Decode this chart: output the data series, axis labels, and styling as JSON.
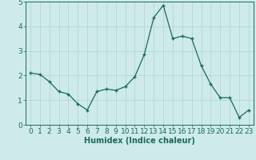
{
  "x": [
    0,
    1,
    2,
    3,
    4,
    5,
    6,
    7,
    8,
    9,
    10,
    11,
    12,
    13,
    14,
    15,
    16,
    17,
    18,
    19,
    20,
    21,
    22,
    23
  ],
  "y": [
    2.1,
    2.05,
    1.75,
    1.35,
    1.25,
    0.85,
    0.6,
    1.35,
    1.45,
    1.4,
    1.55,
    1.95,
    2.85,
    4.35,
    4.85,
    3.5,
    3.6,
    3.5,
    2.4,
    1.65,
    1.1,
    1.1,
    0.3,
    0.6
  ],
  "line_color": "#1a6b5a",
  "marker_color": "#1a6b5a",
  "bg_color": "#ceeaea",
  "grid_color": "#b0d8d8",
  "xlabel": "Humidex (Indice chaleur)",
  "xlabel_fontsize": 7,
  "tick_fontsize": 6.5,
  "ylim": [
    0,
    5
  ],
  "xlim": [
    -0.5,
    23.5
  ],
  "yticks": [
    0,
    1,
    2,
    3,
    4,
    5
  ],
  "xticks": [
    0,
    1,
    2,
    3,
    4,
    5,
    6,
    7,
    8,
    9,
    10,
    11,
    12,
    13,
    14,
    15,
    16,
    17,
    18,
    19,
    20,
    21,
    22,
    23
  ]
}
